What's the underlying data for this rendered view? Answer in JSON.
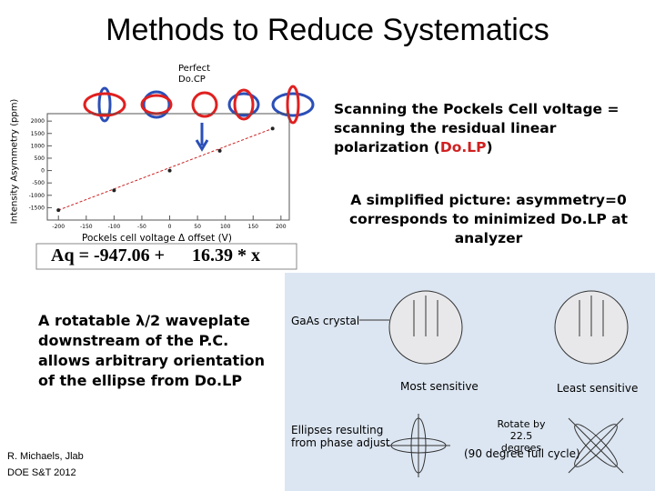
{
  "title": "Methods to Reduce Systematics",
  "plot": {
    "type": "scatter",
    "annotation": "Perfect Do.CP",
    "xlabel": "Pockels cell voltage Δ offset (V)",
    "ylabel": "Intensity Asymmetry (ppm)",
    "fit": "Aq = -947.06 +      16.39 * x",
    "x": [
      -200,
      -100,
      0,
      90,
      185
    ],
    "values": [
      -1600,
      -800,
      0,
      800,
      1700
    ],
    "xlim": [
      -220,
      215
    ],
    "ylim": [
      -2000,
      2300
    ],
    "xticks": [
      -200,
      -150,
      -100,
      -50,
      0,
      50,
      100,
      150,
      200
    ],
    "yticks": [
      -1500,
      -1000,
      -500,
      0,
      500,
      1000,
      1500,
      2000
    ],
    "color": "#222222",
    "fit_color": "#cc2222"
  },
  "scan": [
    "Scanning the Pockels Cell voltage = scanning the residual linear polarization  (",
    "Do.LP",
    ")"
  ],
  "simplified": "A simplified picture: asymmetry=0 corresponds to minimized Do.LP at analyzer",
  "waveplate": "A rotatable λ/2 waveplate downstream of the P.C. allows arbitrary orientation of the ellipse from Do.LP",
  "figure": {
    "gaas": "GaAs crystal",
    "most": "Most sensitive",
    "least": "Least sensitive",
    "ellipses": "Ellipses resulting from phase adjust",
    "rotate": "Rotate by 22.5 degrees",
    "cycle": "(90 degree full cycle)"
  },
  "footer": [
    "R. Michaels,  Jlab",
    "DOE  S&T  2012"
  ]
}
